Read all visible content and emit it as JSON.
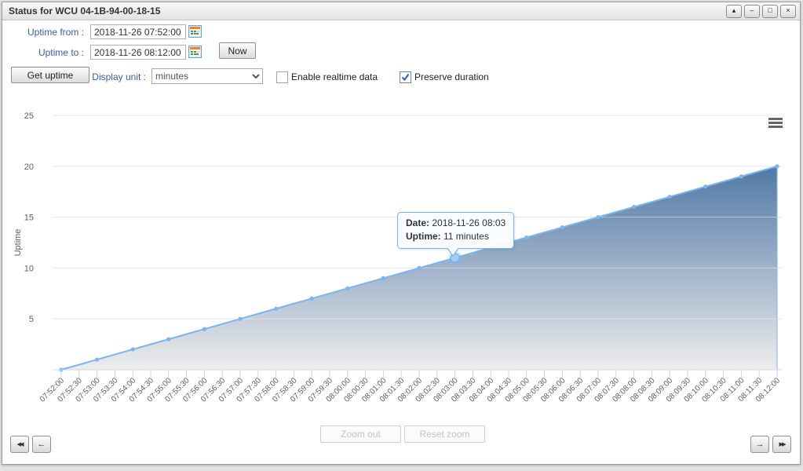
{
  "window": {
    "title": "Status for WCU 04-1B-94-00-18-15",
    "controls": [
      {
        "name": "collapse",
        "glyph": "▴"
      },
      {
        "name": "minimize",
        "glyph": "–"
      },
      {
        "name": "maximize",
        "glyph": "□"
      },
      {
        "name": "close",
        "glyph": "×"
      }
    ]
  },
  "form": {
    "uptime_from_label": "Uptime from :",
    "uptime_from_value": "2018-11-26 07:52:00",
    "uptime_to_label": "Uptime to :",
    "uptime_to_value": "2018-11-26 08:12:00",
    "now_button": "Now",
    "get_uptime_button": "Get uptime",
    "display_unit_label": "Display unit :",
    "display_unit_value": "minutes",
    "enable_realtime": {
      "label": "Enable realtime data",
      "checked": false
    },
    "preserve_duration": {
      "label": "Preserve duration",
      "checked": true
    }
  },
  "chart_data": {
    "type": "area",
    "title": "",
    "xlabel": "",
    "ylabel": "Uptime",
    "ylim": [
      0,
      25
    ],
    "yticks": [
      5,
      10,
      15,
      20,
      25
    ],
    "x": [
      "07:52:00",
      "07:53:00",
      "07:54:00",
      "07:55:00",
      "07:56:00",
      "07:57:00",
      "07:58:00",
      "07:59:00",
      "08:00:00",
      "08:01:00",
      "08:02:00",
      "08:03:00",
      "08:04:00",
      "08:05:00",
      "08:06:00",
      "08:07:00",
      "08:08:00",
      "08:09:00",
      "08:10:00",
      "08:11:00",
      "08:12:00"
    ],
    "values": [
      0,
      1,
      2,
      3,
      4,
      5,
      6,
      7,
      8,
      9,
      10,
      11,
      12,
      13,
      14,
      15,
      16,
      17,
      18,
      19,
      20
    ],
    "xticklabels": [
      "07:52:00",
      "07:52:30",
      "07:53:00",
      "07:53:30",
      "07:54:00",
      "07:54:30",
      "07:55:00",
      "07:55:30",
      "07:56:00",
      "07:56:30",
      "07:57:00",
      "07:57:30",
      "07:58:00",
      "07:58:30",
      "07:59:00",
      "07:59:30",
      "08:00:00",
      "08:00:30",
      "08:01:00",
      "08:01:30",
      "08:02:00",
      "08:02:30",
      "08:03:00",
      "08:03:30",
      "08:04:00",
      "08:04:30",
      "08:05:00",
      "08:05:30",
      "08:06:00",
      "08:06:30",
      "08:07:00",
      "08:07:30",
      "08:08:00",
      "08:08:30",
      "08:09:00",
      "08:09:30",
      "08:10:00",
      "08:10:30",
      "08:11:00",
      "08:11:30",
      "08:12:00"
    ],
    "grid": true,
    "legend": "none",
    "line_color": "#7cb5ec",
    "area_top_color": "#4d76a4",
    "area_bottom_color": "#ededed",
    "highlight_index": 11
  },
  "tooltip": {
    "date_label": "Date:",
    "date_value": "2018-11-26 08:03",
    "uptime_label": "Uptime:",
    "uptime_value": "11 minutes"
  },
  "chart_buttons": {
    "zoom_out": "Zoom out",
    "reset_zoom": "Reset zoom"
  },
  "nav": {
    "first": "◂◂",
    "prev": "←",
    "next": "→",
    "last": "▸▸"
  }
}
